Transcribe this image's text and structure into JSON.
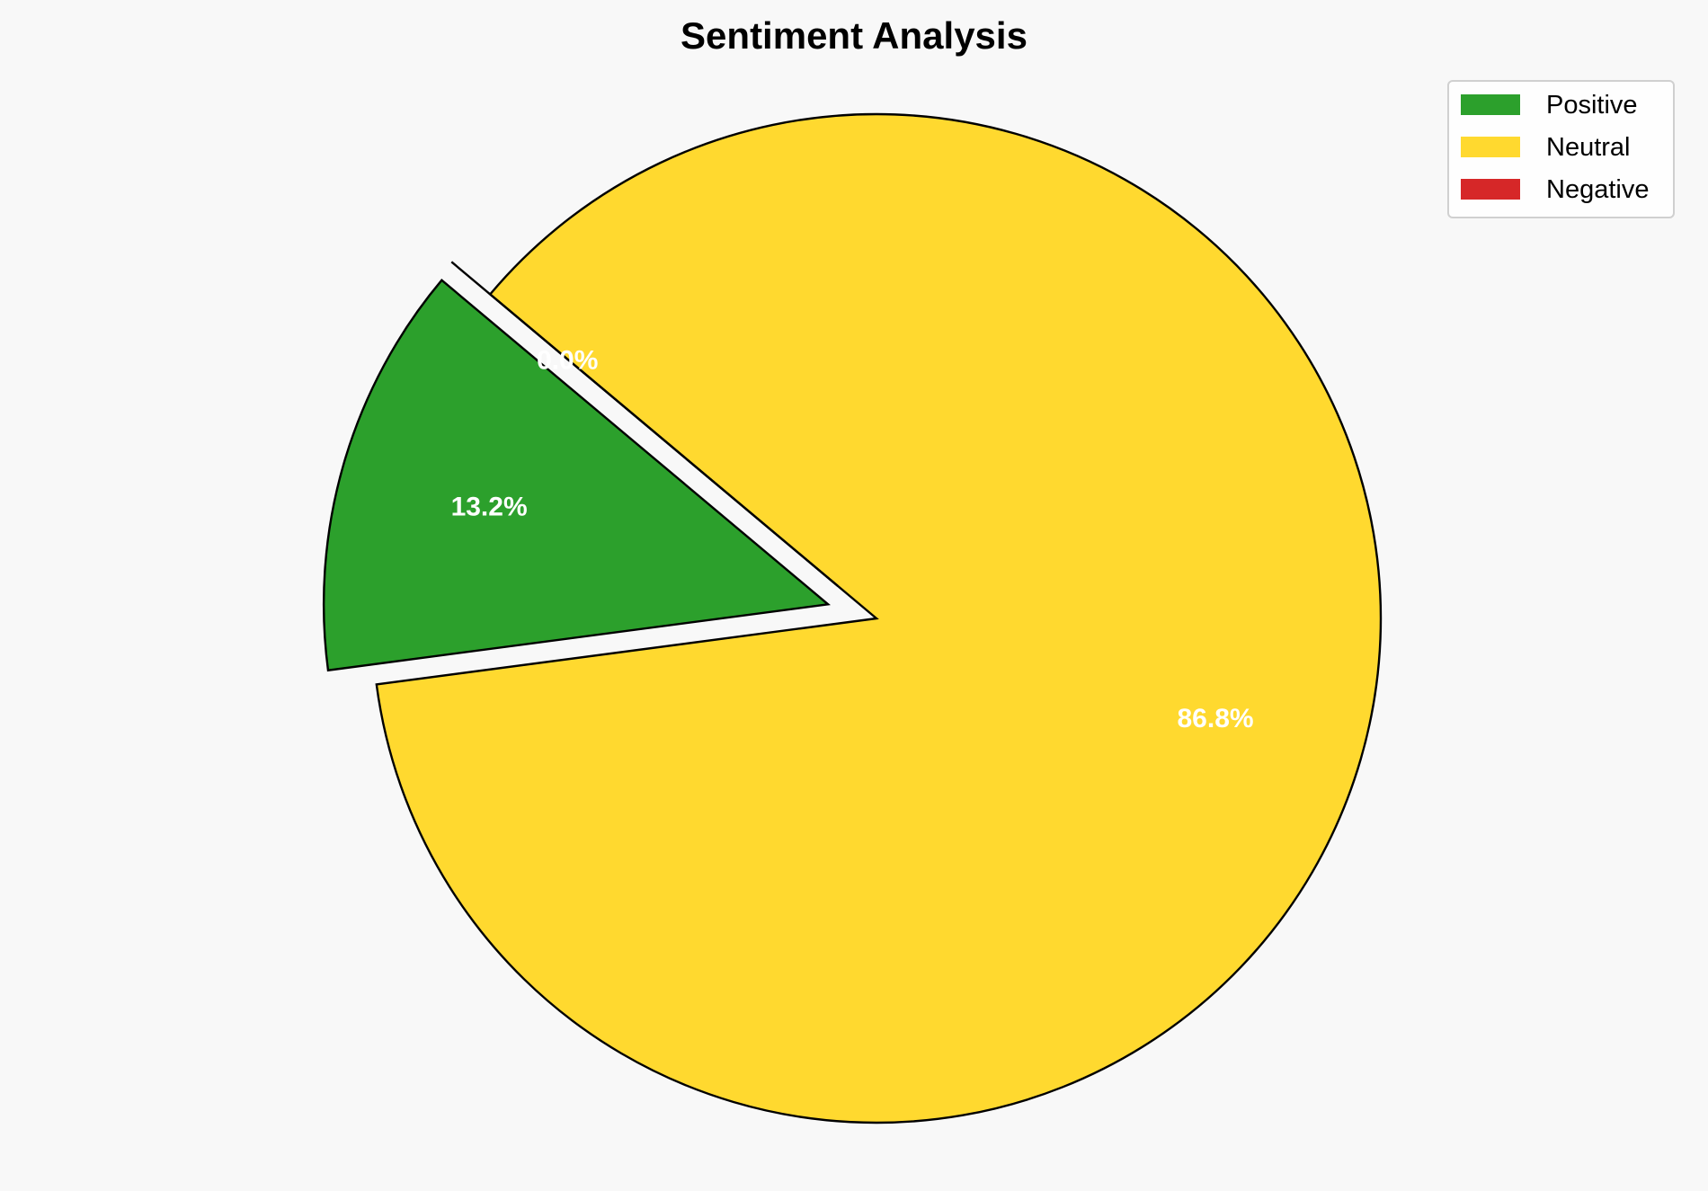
{
  "chart_data": {
    "type": "pie",
    "title": "Sentiment Analysis",
    "labels": [
      "Positive",
      "Neutral",
      "Negative"
    ],
    "values": [
      13.2,
      86.8,
      0.0
    ],
    "pct_labels": [
      "13.2%",
      "86.8%",
      "0.0%"
    ],
    "colors": [
      "#2ca02c",
      "#ffd92f",
      "#d62728"
    ],
    "explode": [
      0.1,
      0,
      0.1
    ],
    "start_angle": 140,
    "legend_position": "top-right"
  }
}
